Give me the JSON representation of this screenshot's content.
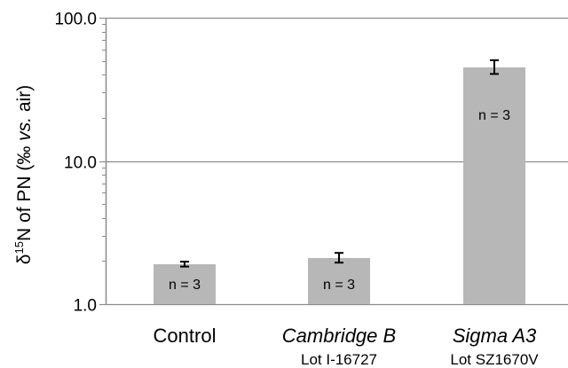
{
  "chart_data": {
    "type": "bar",
    "scale": "log",
    "ylim": [
      1.0,
      100.0
    ],
    "yticks": [
      "1.0",
      "10.0",
      "100.0"
    ],
    "ylabel": {
      "prefix": "δ",
      "sup": "15",
      "main": "N of PN (",
      "permil": "‰",
      "italic": "vs.",
      "suffix": " air)"
    },
    "categories": [
      {
        "name": "Control",
        "lot": "",
        "italic": false
      },
      {
        "name": "Cambridge B",
        "lot": "Lot I-16727",
        "italic": true
      },
      {
        "name": "Sigma A3",
        "lot": "Lot SZ1670V",
        "italic": true
      }
    ],
    "values": [
      1.9,
      2.1,
      45.0
    ],
    "error": [
      [
        1.83,
        1.98
      ],
      [
        1.95,
        2.28
      ],
      [
        40.5,
        50.5
      ]
    ],
    "annotations": [
      "n = 3",
      "n = 3",
      "n = 3"
    ],
    "grid": true,
    "legend": "none",
    "colors": {
      "bar": "#b7b7b7",
      "grid": "#8c8c8c",
      "axis": "#8c8c8c",
      "errorbar": "#000000"
    }
  }
}
